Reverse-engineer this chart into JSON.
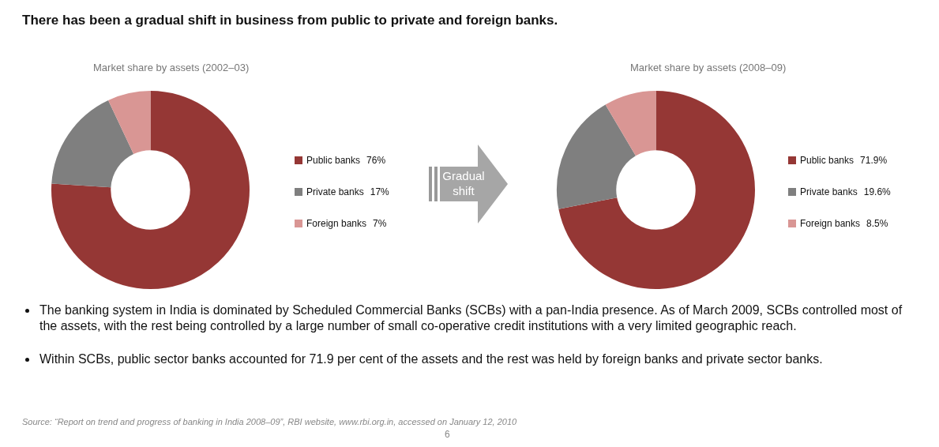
{
  "chart_data": [
    {
      "type": "donut",
      "title": "Market share by assets (2002–03)",
      "categories": [
        "Public banks",
        "Private banks",
        "Foreign banks"
      ],
      "values": [
        76,
        17,
        7
      ],
      "colors": [
        "#953735",
        "#7f7f7f",
        "#d99694"
      ],
      "value_labels": [
        "76%",
        "17%",
        "7%"
      ],
      "legend": "right",
      "annotations": [
        "There has been a gradual shift in business from public to private and foreign banks.",
        "Gradual shift"
      ]
    },
    {
      "type": "donut",
      "title": "Market share by assets (2008–09)",
      "categories": [
        "Public banks",
        "Private banks",
        "Foreign banks"
      ],
      "values": [
        71.9,
        19.6,
        8.5
      ],
      "colors": [
        "#953735",
        "#7f7f7f",
        "#d99694"
      ],
      "value_labels": [
        "71.9%",
        "19.6%",
        "8.5%"
      ],
      "legend": "right",
      "annotations": [
        "The banking system in India is dominated by Scheduled Commercial Banks (SCBs) with a pan-India presence.  As of March 2009, SCBs controlled most of the assets, with the rest being controlled by a large number of small co-operative credit institutions with a very limited geographic reach.",
        "Within SCBs, public sector banks accounted for 71.9 per cent of the assets and the rest was held by foreign banks and private sector banks.",
        "Source: “Report on trend and progress of banking in India 2008–09”, RBI website, www.rbi.org.in, accessed on January 12, 2010",
        "6"
      ]
    }
  ]
}
